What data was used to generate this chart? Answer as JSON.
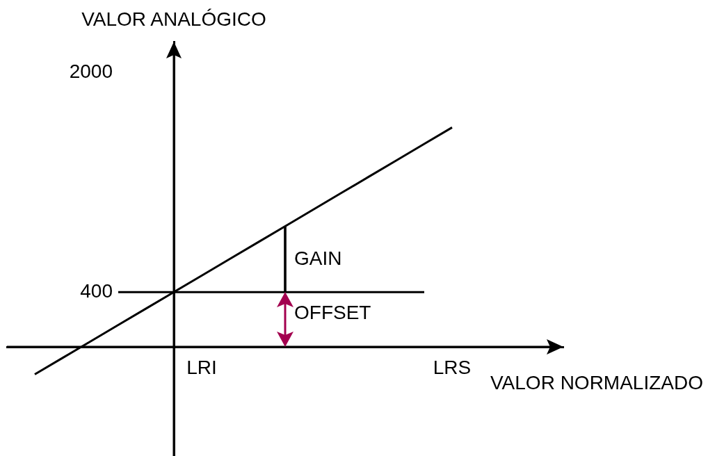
{
  "chart_data": {
    "type": "line",
    "xlabel": "VALOR NORMALIZADO",
    "ylabel": "VALOR ANALÓGICO",
    "categories": [
      null,
      null,
      null,
      null,
      null,
      null,
      null,
      "LRI",
      null,
      null,
      null,
      null,
      null,
      null,
      null,
      null,
      "LRS",
      null,
      null,
      null,
      null
    ],
    "ylim": [
      -795,
      2225
    ],
    "yticks": [
      400,
      2000
    ],
    "series": [
      {
        "color": "#000000",
        "values": [
          null,
          -200,
          -80,
          40,
          160,
          280,
          400,
          520,
          640,
          760,
          880,
          1000,
          1120,
          1240,
          1360,
          1480,
          1600,
          null,
          null,
          null,
          null
        ]
      },
      {
        "color": "#000000",
        "values": [
          null,
          null,
          null,
          null,
          400,
          400,
          400,
          400,
          400,
          400,
          400,
          400,
          400,
          400,
          400,
          400,
          null,
          null,
          null,
          null,
          null
        ]
      },
      {
        "type": "bar",
        "color": "#000000",
        "values": [
          null,
          null,
          null,
          null,
          null,
          null,
          null,
          null,
          null,
          null,
          480,
          null,
          null,
          null,
          null,
          null,
          null,
          null,
          null,
          null,
          null
        ],
        "base": [
          null,
          null,
          null,
          null,
          null,
          null,
          null,
          null,
          null,
          null,
          400,
          null,
          null,
          null,
          null,
          null,
          null,
          null,
          null,
          null,
          null
        ]
      }
    ],
    "annotations": [
      "GAIN",
      "OFFSET"
    ],
    "grid": false,
    "legend": false,
    "marker": "none",
    "line_style": "solid"
  }
}
